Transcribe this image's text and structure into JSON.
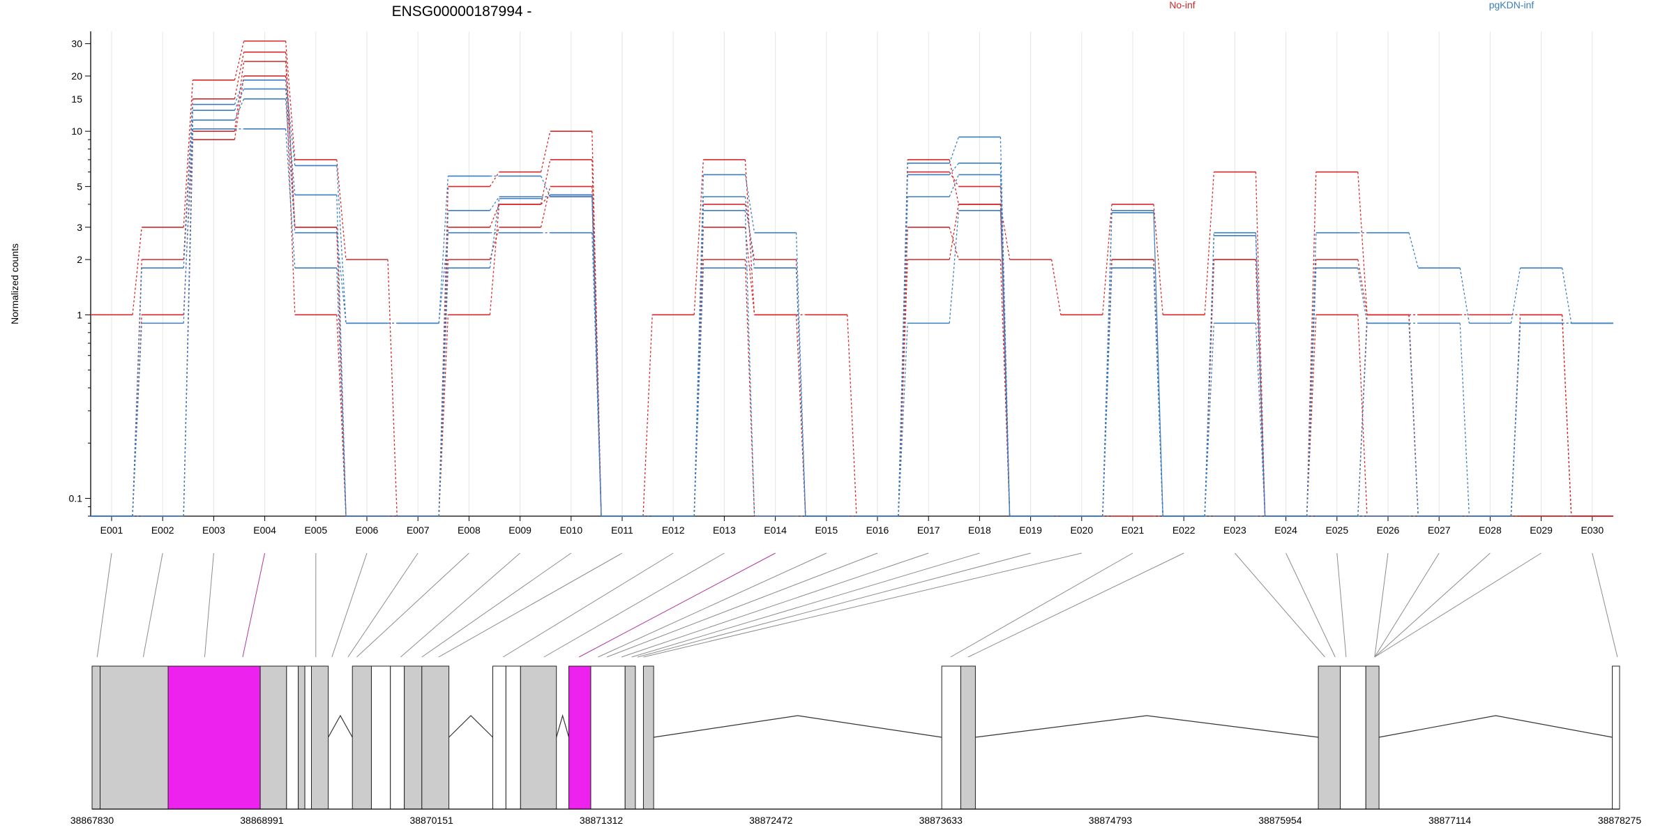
{
  "chart_data": {
    "type": "line",
    "title": "ENSG00000187994 -",
    "ylabel": "Normalized counts",
    "yscale": "log",
    "ylim": [
      0.08,
      35
    ],
    "yticks": [
      0.1,
      1,
      2,
      3,
      5,
      10,
      15,
      20,
      30
    ],
    "ytick_labels": [
      "0.1",
      "1",
      "2",
      "3",
      "5",
      "10",
      "15",
      "20",
      "30"
    ],
    "categories": [
      "E001",
      "E002",
      "E003",
      "E004",
      "E005",
      "E006",
      "E007",
      "E008",
      "E009",
      "E010",
      "E011",
      "E012",
      "E013",
      "E014",
      "E015",
      "E016",
      "E017",
      "E018",
      "E019",
      "E020",
      "E021",
      "E022",
      "E023",
      "E024",
      "E025",
      "E026",
      "E027",
      "E028",
      "E029",
      "E030"
    ],
    "legend": [
      {
        "label": "No-inf",
        "color": "#d62728"
      },
      {
        "label": "pgKDN-inf",
        "color": "#3a7dc2"
      }
    ],
    "series": [
      {
        "group": "No-inf",
        "color": "#d62728",
        "values": [
          1,
          3,
          19,
          31,
          7,
          2,
          0.08,
          5,
          6,
          10,
          0.08,
          1,
          7,
          1,
          1,
          0.08,
          7,
          4,
          2,
          1,
          4,
          1,
          6,
          0.08,
          6,
          1,
          1,
          1,
          1,
          0.08
        ]
      },
      {
        "group": "No-inf",
        "color": "#d62728",
        "values": [
          0.08,
          2,
          15,
          27,
          3,
          0.08,
          0.08,
          3,
          4,
          7,
          0.08,
          0.08,
          4,
          2,
          0.08,
          0.08,
          6,
          5,
          0.08,
          0.08,
          2,
          0.08,
          2,
          0.08,
          2,
          1,
          0.08,
          0.08,
          1,
          0.08
        ]
      },
      {
        "group": "No-inf",
        "color": "#d62728",
        "values": [
          0.08,
          1,
          10,
          24,
          3,
          0.08,
          0.08,
          2,
          3,
          5,
          0.08,
          0.08,
          3,
          1,
          0.08,
          0.08,
          3,
          2,
          0.08,
          0.08,
          2,
          0.08,
          0.08,
          0.08,
          1,
          0.08,
          0.08,
          0.08,
          0.08,
          0.08
        ]
      },
      {
        "group": "No-inf",
        "color": "#d62728",
        "values": [
          0.08,
          0.08,
          9,
          20,
          1,
          0.08,
          0.08,
          1,
          4,
          4.5,
          0.08,
          0.08,
          2,
          0.08,
          0.08,
          0.08,
          2,
          4,
          0.08,
          0.08,
          0.08,
          0.08,
          2,
          0.08,
          0.08,
          1,
          0.08,
          0.08,
          0.08,
          0.08
        ]
      },
      {
        "group": "pgKDN-inf",
        "color": "#3a7dc2",
        "values": [
          0.08,
          1.8,
          14,
          19,
          6.5,
          0.9,
          0.9,
          5.7,
          5.7,
          4.4,
          0.08,
          0.08,
          5.8,
          2.8,
          0.08,
          0.08,
          6.7,
          9.3,
          0.08,
          0.08,
          3.7,
          0.08,
          2.8,
          0.08,
          2.8,
          2.8,
          1.8,
          0.9,
          1.8,
          0.9
        ]
      },
      {
        "group": "pgKDN-inf",
        "color": "#3a7dc2",
        "values": [
          0.08,
          0.9,
          13,
          17,
          4.5,
          0.08,
          0.08,
          3.7,
          4.4,
          4.4,
          0.08,
          0.08,
          4.4,
          1.8,
          0.08,
          0.08,
          5.8,
          6.7,
          0.08,
          0.08,
          3.6,
          0.08,
          2.7,
          0.08,
          1.8,
          0.9,
          0.08,
          0.08,
          0.9,
          0.9
        ]
      },
      {
        "group": "pgKDN-inf",
        "color": "#3a7dc2",
        "values": [
          0.08,
          0.08,
          11.5,
          15,
          2.8,
          0.9,
          0.9,
          2.8,
          2.8,
          2.8,
          0.08,
          0.08,
          3.7,
          0.08,
          0.08,
          0.08,
          4.4,
          5.8,
          0.08,
          0.08,
          1.8,
          0.08,
          0.9,
          0.08,
          0.08,
          0.9,
          0.9,
          0.08,
          0.9,
          0.9
        ]
      },
      {
        "group": "pgKDN-inf",
        "color": "#3a7dc2",
        "values": [
          0.08,
          0.08,
          10.3,
          10.3,
          1.8,
          0.08,
          0.08,
          1.8,
          4.3,
          4.5,
          0.08,
          0.08,
          1.8,
          1.8,
          0.08,
          0.08,
          0.9,
          3.7,
          0.08,
          0.08,
          1.8,
          0.08,
          0.08,
          0.08,
          0.08,
          0.08,
          0.08,
          0.08,
          0.9,
          0.9
        ]
      }
    ]
  },
  "gene_model": {
    "coordinate_labels": [
      "38867830",
      "38868991",
      "38870151",
      "38871312",
      "38872472",
      "38873633",
      "38874793",
      "38875954",
      "38877114",
      "38878275"
    ],
    "coord_range": [
      38867830,
      38878275
    ],
    "exons": [
      {
        "start": 38867830,
        "end": 38867885,
        "fill": "#cccccc"
      },
      {
        "start": 38867885,
        "end": 38868350,
        "fill": "#cccccc"
      },
      {
        "start": 38868350,
        "end": 38868980,
        "fill": "#ee22ee"
      },
      {
        "start": 38868980,
        "end": 38869160,
        "fill": "#cccccc"
      },
      {
        "start": 38869160,
        "end": 38869240,
        "fill": "#ffffff"
      },
      {
        "start": 38869240,
        "end": 38869285,
        "fill": "#cccccc"
      },
      {
        "start": 38869285,
        "end": 38869330,
        "fill": "#ffffff"
      },
      {
        "start": 38869330,
        "end": 38869445,
        "fill": "#cccccc"
      },
      {
        "start": 38869610,
        "end": 38869740,
        "fill": "#cccccc"
      },
      {
        "start": 38869740,
        "end": 38869870,
        "fill": "#ffffff"
      },
      {
        "start": 38869870,
        "end": 38869965,
        "fill": "#ffffff"
      },
      {
        "start": 38869965,
        "end": 38870085,
        "fill": "#cccccc"
      },
      {
        "start": 38870085,
        "end": 38870270,
        "fill": "#cccccc"
      },
      {
        "start": 38870570,
        "end": 38870660,
        "fill": "#ffffff"
      },
      {
        "start": 38870660,
        "end": 38870760,
        "fill": "#ffffff"
      },
      {
        "start": 38870760,
        "end": 38871005,
        "fill": "#cccccc"
      },
      {
        "start": 38871090,
        "end": 38871240,
        "fill": "#ee22ee"
      },
      {
        "start": 38871240,
        "end": 38871475,
        "fill": "#ffffff"
      },
      {
        "start": 38871475,
        "end": 38871545,
        "fill": "#cccccc"
      },
      {
        "start": 38871600,
        "end": 38871670,
        "fill": "#cccccc"
      },
      {
        "start": 38873640,
        "end": 38873770,
        "fill": "#ffffff"
      },
      {
        "start": 38873770,
        "end": 38873870,
        "fill": "#cccccc"
      },
      {
        "start": 38876215,
        "end": 38876365,
        "fill": "#cccccc"
      },
      {
        "start": 38876365,
        "end": 38876540,
        "fill": "#ffffff"
      },
      {
        "start": 38876540,
        "end": 38876630,
        "fill": "#cccccc"
      },
      {
        "start": 38878225,
        "end": 38878275,
        "fill": "#ffffff"
      }
    ],
    "introns": [
      [
        38869445,
        38869610
      ],
      [
        38870270,
        38870570
      ],
      [
        38871005,
        38871090
      ],
      [
        38871670,
        38873640
      ],
      [
        38873870,
        38876215
      ],
      [
        38876630,
        38878225
      ]
    ],
    "connector_targets": [
      38867865,
      38868180,
      38868600,
      38868860,
      38869360,
      38869470,
      38869580,
      38869640,
      38869940,
      38870085,
      38870200,
      38870640,
      38870920,
      38871160,
      38871290,
      38871350,
      38871450,
      38871520,
      38871560,
      38871600,
      38873700,
      38873820,
      38876260,
      38876330,
      38876405,
      38876600,
      38876600,
      38876600,
      38876600,
      38878260
    ],
    "highlight_connectors": [
      3,
      13
    ]
  }
}
